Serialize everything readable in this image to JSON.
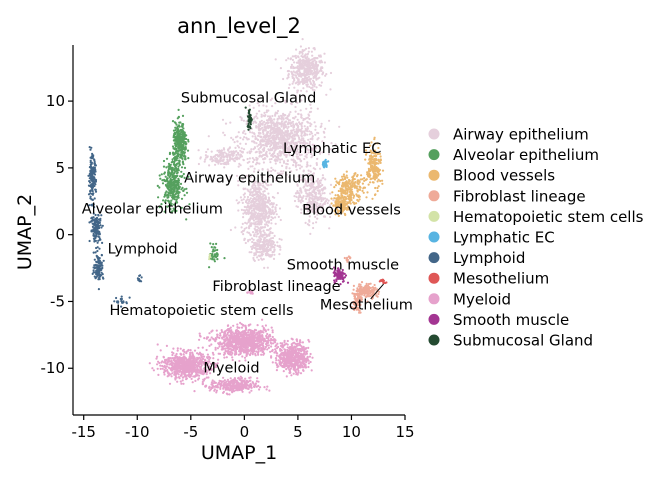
{
  "chart_data": {
    "type": "scatter",
    "title": "ann_level_2",
    "xlabel": "UMAP_1",
    "ylabel": "UMAP_2",
    "xlim": [
      -16,
      15
    ],
    "ylim": [
      -13.5,
      14.2
    ],
    "x_ticks": [
      -15,
      -10,
      -5,
      0,
      5,
      10,
      15
    ],
    "y_ticks": [
      10,
      5,
      0,
      -5,
      -10
    ],
    "x_tick_labels": [
      "-15",
      "-10",
      "-5",
      "0",
      "5",
      "10",
      "15"
    ],
    "y_tick_labels": [
      "10",
      "5",
      "0",
      "-5",
      "-10"
    ],
    "grid": false,
    "legend_position": "right",
    "series": [
      {
        "name": "Airway epithelium",
        "color": "#E5CFDC",
        "clusters": [
          {
            "cx": 5.8,
            "cy": 12.3,
            "sx": 1.5,
            "sy": 1.3,
            "n": 420
          },
          {
            "cx": 3.3,
            "cy": 7.2,
            "sx": 3.2,
            "sy": 2.0,
            "n": 1000
          },
          {
            "cx": -2.0,
            "cy": 5.8,
            "sx": 1.6,
            "sy": 0.6,
            "n": 160
          },
          {
            "cx": 1.3,
            "cy": 2.0,
            "sx": 1.4,
            "sy": 2.0,
            "n": 520
          },
          {
            "cx": 6.3,
            "cy": 3.0,
            "sx": 1.3,
            "sy": 1.8,
            "n": 330
          },
          {
            "cx": 1.8,
            "cy": -0.8,
            "sx": 1.1,
            "sy": 1.0,
            "n": 220
          }
        ]
      },
      {
        "name": "Alveolar epithelium",
        "color": "#55A05E",
        "clusters": [
          {
            "cx": -6.0,
            "cy": 6.8,
            "sx": 0.6,
            "sy": 1.4,
            "n": 300
          },
          {
            "cx": -6.7,
            "cy": 3.8,
            "sx": 0.9,
            "sy": 1.6,
            "n": 320
          },
          {
            "cx": -2.8,
            "cy": -1.4,
            "sx": 0.4,
            "sy": 0.7,
            "n": 40
          }
        ]
      },
      {
        "name": "Blood vessels",
        "color": "#EBB86F",
        "clusters": [
          {
            "cx": 12.1,
            "cy": 5.0,
            "sx": 0.6,
            "sy": 1.5,
            "n": 180
          },
          {
            "cx": 9.9,
            "cy": 3.5,
            "sx": 1.2,
            "sy": 0.9,
            "n": 200
          },
          {
            "cx": 9.1,
            "cy": 2.3,
            "sx": 0.8,
            "sy": 0.6,
            "n": 120
          }
        ]
      },
      {
        "name": "Fibroblast lineage",
        "color": "#EFAA98",
        "clusters": [
          {
            "cx": 11.4,
            "cy": -4.2,
            "sx": 0.9,
            "sy": 0.5,
            "n": 150
          },
          {
            "cx": 10.5,
            "cy": -5.0,
            "sx": 0.4,
            "sy": 0.7,
            "n": 80
          },
          {
            "cx": 9.7,
            "cy": -1.8,
            "sx": 0.3,
            "sy": 0.2,
            "n": 12
          }
        ]
      },
      {
        "name": "Hematopoietic stem cells",
        "color": "#D3E3A7",
        "clusters": [
          {
            "cx": -3.2,
            "cy": -1.6,
            "sx": 0.2,
            "sy": 0.2,
            "n": 5
          }
        ]
      },
      {
        "name": "Lymphatic EC",
        "color": "#58B4E2",
        "clusters": [
          {
            "cx": 7.5,
            "cy": 5.3,
            "sx": 0.25,
            "sy": 0.25,
            "n": 30
          }
        ]
      },
      {
        "name": "Lymphoid",
        "color": "#436688",
        "clusters": [
          {
            "cx": -14.2,
            "cy": 4.2,
            "sx": 0.3,
            "sy": 1.5,
            "n": 160
          },
          {
            "cx": -13.8,
            "cy": 0.5,
            "sx": 0.5,
            "sy": 1.0,
            "n": 120
          },
          {
            "cx": -13.6,
            "cy": -2.4,
            "sx": 0.4,
            "sy": 0.9,
            "n": 120
          },
          {
            "cx": -11.4,
            "cy": -5.0,
            "sx": 0.5,
            "sy": 0.3,
            "n": 20
          },
          {
            "cx": -9.8,
            "cy": -3.3,
            "sx": 0.2,
            "sy": 0.3,
            "n": 10
          }
        ]
      },
      {
        "name": "Mesothelium",
        "color": "#DF5756",
        "clusters": [
          {
            "cx": 12.9,
            "cy": -3.5,
            "sx": 0.3,
            "sy": 0.15,
            "n": 15
          }
        ]
      },
      {
        "name": "Myeloid",
        "color": "#E6A2CC",
        "clusters": [
          {
            "cx": 0.0,
            "cy": -8.0,
            "sx": 2.5,
            "sy": 0.9,
            "n": 900
          },
          {
            "cx": -5.5,
            "cy": -9.8,
            "sx": 2.0,
            "sy": 0.9,
            "n": 700
          },
          {
            "cx": 4.6,
            "cy": -9.2,
            "sx": 1.3,
            "sy": 1.0,
            "n": 500
          },
          {
            "cx": -1.0,
            "cy": -11.3,
            "sx": 2.0,
            "sy": 0.5,
            "n": 300
          },
          {
            "cx": 0.5,
            "cy": -4.3,
            "sx": 0.4,
            "sy": 0.2,
            "n": 15
          }
        ]
      },
      {
        "name": "Smooth muscle",
        "color": "#A33592",
        "clusters": [
          {
            "cx": 8.9,
            "cy": -3.0,
            "sx": 0.5,
            "sy": 0.5,
            "n": 90
          }
        ]
      },
      {
        "name": "Submucosal Gland",
        "color": "#244A31",
        "clusters": [
          {
            "cx": 0.5,
            "cy": 8.7,
            "sx": 0.2,
            "sy": 0.7,
            "n": 45
          }
        ]
      }
    ],
    "annotations": [
      {
        "text": "Submucosal Gland",
        "x": 0.4,
        "y": 9.9,
        "anchor": "middle"
      },
      {
        "text": "Lymphatic EC",
        "x": 8.2,
        "y": 6.1,
        "anchor": "middle"
      },
      {
        "text": "Airway epithelium",
        "x": 0.5,
        "y": 3.9,
        "anchor": "middle"
      },
      {
        "text": "Alveolar epithelium",
        "x": -8.6,
        "y": 1.6,
        "anchor": "middle"
      },
      {
        "text": "Blood vessels",
        "x": 10.0,
        "y": 1.5,
        "anchor": "middle"
      },
      {
        "text": "Lymphoid",
        "x": -9.5,
        "y": -1.4,
        "anchor": "middle"
      },
      {
        "text": "Smooth muscle",
        "x": 9.2,
        "y": -2.6,
        "anchor": "middle"
      },
      {
        "text": "Fibroblast lineage",
        "x": 3.0,
        "y": -4.2,
        "anchor": "middle"
      },
      {
        "text": "Mesothelium",
        "x": 11.4,
        "y": -5.6,
        "anchor": "middle"
      },
      {
        "text": "Hematopoietic stem cells",
        "x": -4.0,
        "y": -6.0,
        "anchor": "middle"
      },
      {
        "text": "Myeloid",
        "x": -1.2,
        "y": -10.3,
        "anchor": "middle"
      }
    ],
    "leader_line": {
      "from": [
        11.8,
        -4.8
      ],
      "to": [
        13.0,
        -3.7
      ]
    }
  }
}
